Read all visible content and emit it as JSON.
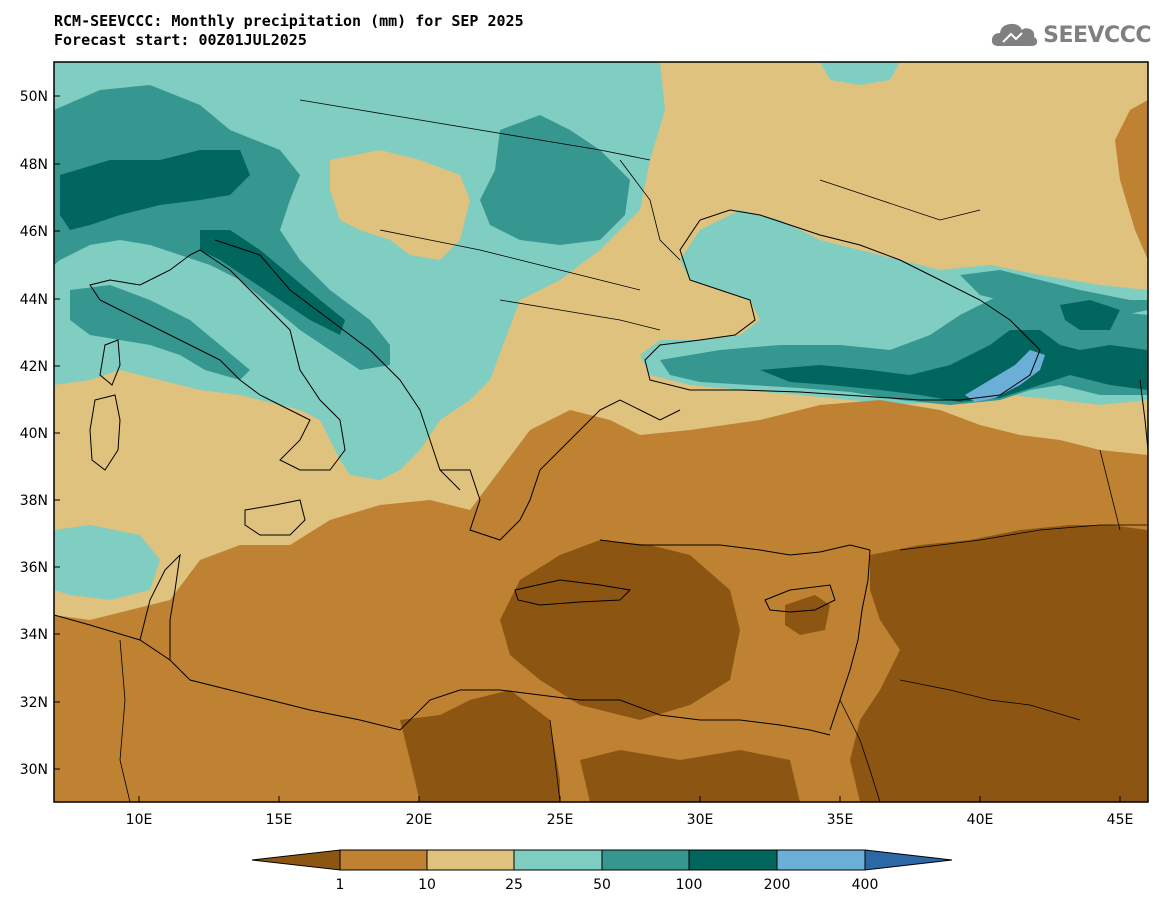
{
  "title": {
    "line1": "RCM-SEEVCCC: Monthly precipitation (mm) for SEP 2025",
    "line2": "Forecast start: 00Z01JUL2025"
  },
  "logo": {
    "text": "SEEVCCC",
    "icon": "cloud-icon"
  },
  "map": {
    "lat_labels": [
      "50N",
      "48N",
      "46N",
      "44N",
      "42N",
      "40N",
      "38N",
      "36N",
      "34N",
      "32N",
      "30N"
    ],
    "lon_labels": [
      "10E",
      "15E",
      "20E",
      "25E",
      "30E",
      "35E",
      "40E",
      "45E"
    ]
  },
  "colorbar": {
    "levels": [
      "1",
      "10",
      "25",
      "50",
      "100",
      "200",
      "400"
    ],
    "colors": [
      "#8c5612",
      "#bf8233",
      "#dfc27d",
      "#80cdc1",
      "#35978f",
      "#01665e",
      "#6baed6",
      "#2c68a6"
    ]
  }
}
